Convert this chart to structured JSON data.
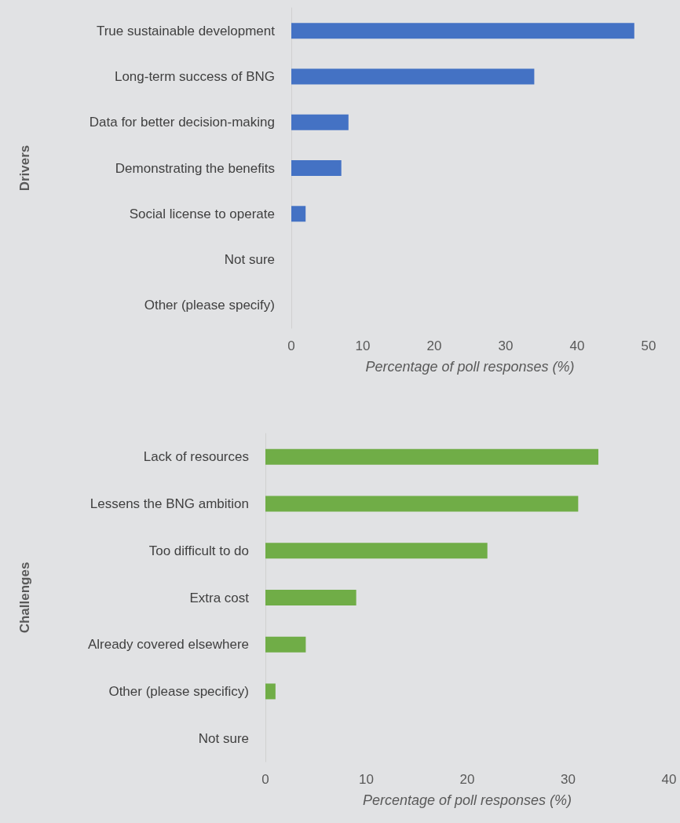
{
  "chart_data": [
    {
      "type": "bar",
      "orientation": "horizontal",
      "ylabel": "Drivers",
      "xlabel": "Percentage of poll responses (%)",
      "categories": [
        "True sustainable development",
        "Long-term success of BNG",
        "Data for better decision-making",
        "Demonstrating the benefits",
        "Social license to operate",
        "Not sure",
        "Other (please specify)"
      ],
      "values": [
        48,
        34,
        8,
        7,
        2,
        0,
        0
      ],
      "color": "#4472c4",
      "xlim": [
        0,
        50
      ],
      "xticks": [
        0,
        10,
        20,
        30,
        40,
        50
      ],
      "grid": false
    },
    {
      "type": "bar",
      "orientation": "horizontal",
      "ylabel": "Challenges",
      "xlabel": "Percentage of poll responses (%)",
      "categories": [
        "Lack of resources",
        "Lessens the BNG ambition",
        "Too difficult to do",
        "Extra cost",
        "Already covered elsewhere",
        "Other (please specificy)",
        "Not sure"
      ],
      "values": [
        33,
        31,
        22,
        9,
        4,
        1,
        0
      ],
      "color": "#70ad47",
      "xlim": [
        0,
        40
      ],
      "xticks": [
        0,
        10,
        20,
        30,
        40
      ],
      "grid": false
    }
  ]
}
